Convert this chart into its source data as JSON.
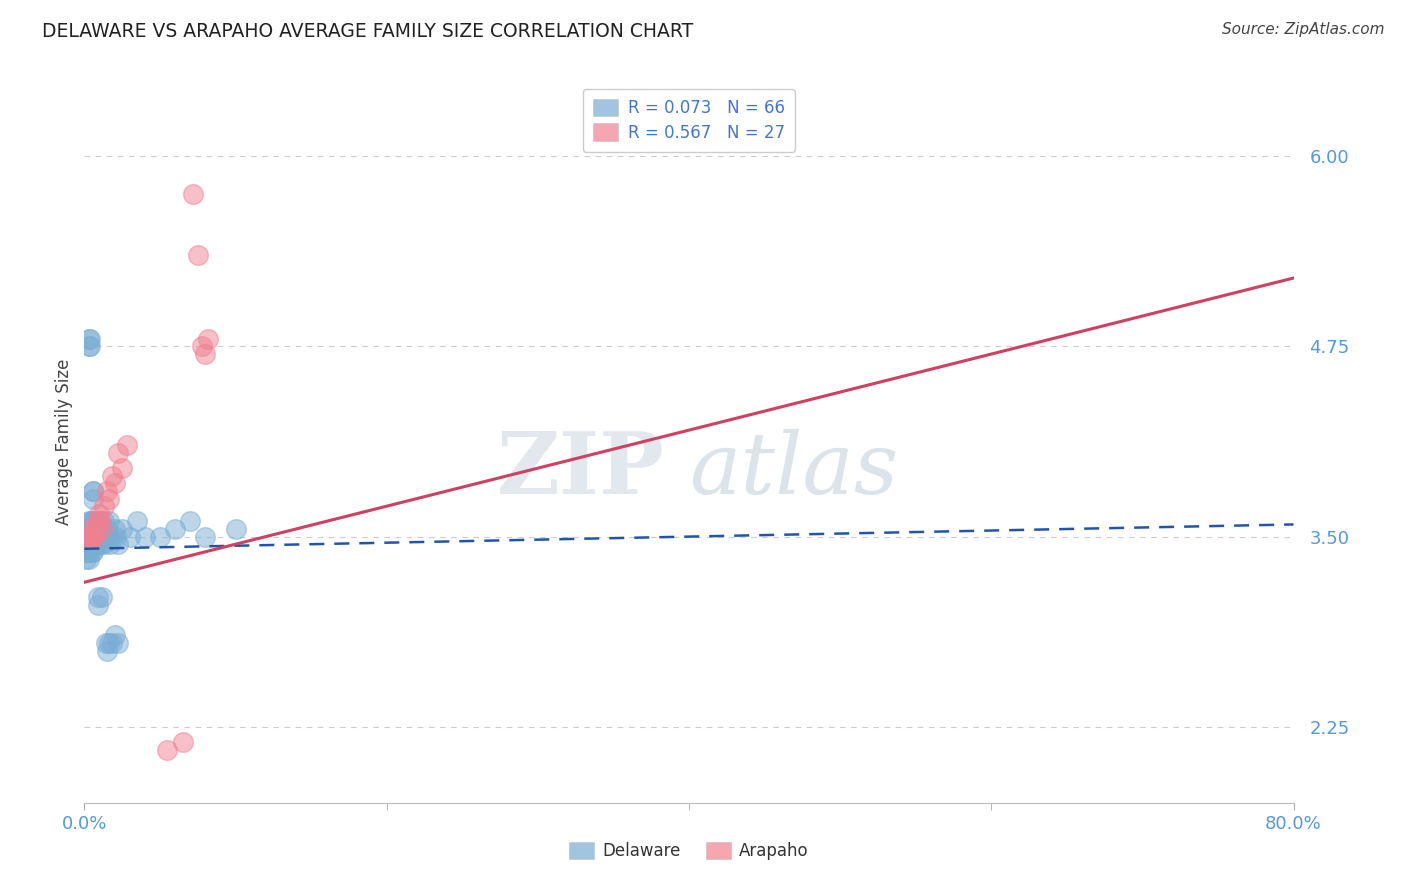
{
  "title": "DELAWARE VS ARAPAHO AVERAGE FAMILY SIZE CORRELATION CHART",
  "source": "Source: ZipAtlas.com",
  "ylabel": "Average Family Size",
  "ytick_values": [
    2.25,
    3.5,
    4.75,
    6.0
  ],
  "ytick_labels": [
    "2.25",
    "3.50",
    "4.75",
    "6.00"
  ],
  "xtick_labels": [
    "0.0%",
    "80.0%"
  ],
  "xtick_values": [
    0.0,
    0.8
  ],
  "xlim": [
    0.0,
    0.8
  ],
  "ylim": [
    1.75,
    6.5
  ],
  "watermark": "ZIPatlas",
  "delaware_color": "#7aadd4",
  "arapaho_color": "#f08090",
  "delaware_line_color": "#2255aa",
  "delaware_line_dash": true,
  "arapaho_line_color": "#d04060",
  "arapaho_line_dash": false,
  "legend_r1": "R = 0.073   N = 66",
  "legend_r2": "R = 0.567   N = 27",
  "legend_color": "#4477cc",
  "bottom_legend": [
    "Delaware",
    "Arapaho"
  ],
  "delaware_x": [
    0.001,
    0.001,
    0.001,
    0.001,
    0.001,
    0.002,
    0.002,
    0.002,
    0.002,
    0.003,
    0.003,
    0.003,
    0.003,
    0.003,
    0.004,
    0.004,
    0.004,
    0.004,
    0.004,
    0.004,
    0.004,
    0.005,
    0.005,
    0.005,
    0.005,
    0.005,
    0.006,
    0.006,
    0.006,
    0.006,
    0.006,
    0.007,
    0.007,
    0.007,
    0.007,
    0.008,
    0.008,
    0.009,
    0.009,
    0.01,
    0.01,
    0.01,
    0.011,
    0.011,
    0.012,
    0.012,
    0.013,
    0.013,
    0.014,
    0.015,
    0.016,
    0.016,
    0.017,
    0.018,
    0.02,
    0.021,
    0.022,
    0.025,
    0.03,
    0.035,
    0.04,
    0.05,
    0.06,
    0.07,
    0.08,
    0.1
  ],
  "delaware_y": [
    3.5,
    3.45,
    3.4,
    3.35,
    3.55,
    3.45,
    3.5,
    3.55,
    3.4,
    3.5,
    3.45,
    3.55,
    3.6,
    3.35,
    3.5,
    3.45,
    3.55,
    3.4,
    3.5,
    3.6,
    3.45,
    3.5,
    3.45,
    3.55,
    3.4,
    3.6,
    3.5,
    3.45,
    3.55,
    3.4,
    3.6,
    3.5,
    3.45,
    3.55,
    3.6,
    3.5,
    3.45,
    3.55,
    3.5,
    3.45,
    3.5,
    3.55,
    3.5,
    3.45,
    3.55,
    3.5,
    3.6,
    3.45,
    3.5,
    3.55,
    3.5,
    3.6,
    3.45,
    3.5,
    3.55,
    3.5,
    3.45,
    3.55,
    3.5,
    3.6,
    3.5,
    3.5,
    3.55,
    3.6,
    3.5,
    3.55
  ],
  "delaware_outlier_x": [
    0.003,
    0.003,
    0.004,
    0.004,
    0.006,
    0.006,
    0.006,
    0.009,
    0.009,
    0.012,
    0.014,
    0.015,
    0.016,
    0.018,
    0.02,
    0.022
  ],
  "delaware_outlier_y": [
    4.8,
    4.75,
    4.8,
    4.75,
    3.8,
    3.75,
    3.8,
    3.1,
    3.05,
    3.1,
    2.8,
    2.75,
    2.8,
    2.8,
    2.85,
    2.8
  ],
  "arapaho_x": [
    0.002,
    0.003,
    0.004,
    0.004,
    0.005,
    0.005,
    0.007,
    0.008,
    0.009,
    0.01,
    0.011,
    0.012,
    0.013,
    0.015,
    0.016,
    0.018,
    0.02,
    0.022,
    0.025,
    0.028,
    0.055,
    0.065,
    0.072,
    0.075,
    0.078,
    0.08,
    0.082
  ],
  "arapaho_y": [
    3.5,
    3.5,
    3.5,
    3.55,
    3.5,
    3.5,
    3.5,
    3.55,
    3.6,
    3.65,
    3.6,
    3.55,
    3.7,
    3.8,
    3.75,
    3.9,
    3.85,
    4.05,
    3.95,
    4.1,
    2.1,
    2.15,
    5.75,
    5.35,
    4.75,
    4.7,
    4.8
  ],
  "delaware_trend": [
    0.0,
    0.8
  ],
  "delaware_trend_y": [
    3.42,
    3.58
  ],
  "arapaho_trend": [
    0.0,
    0.8
  ],
  "arapaho_trend_y": [
    3.2,
    5.2
  ]
}
